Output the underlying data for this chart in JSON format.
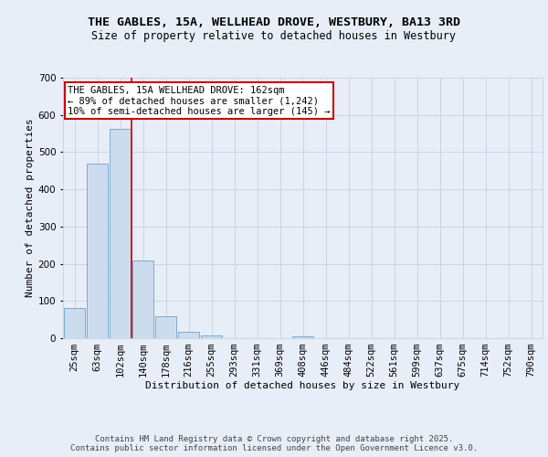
{
  "title1": "THE GABLES, 15A, WELLHEAD DROVE, WESTBURY, BA13 3RD",
  "title2": "Size of property relative to detached houses in Westbury",
  "xlabel": "Distribution of detached houses by size in Westbury",
  "ylabel": "Number of detached properties",
  "categories": [
    "25sqm",
    "63sqm",
    "102sqm",
    "140sqm",
    "178sqm",
    "216sqm",
    "255sqm",
    "293sqm",
    "331sqm",
    "369sqm",
    "408sqm",
    "446sqm",
    "484sqm",
    "522sqm",
    "561sqm",
    "599sqm",
    "637sqm",
    "675sqm",
    "714sqm",
    "752sqm",
    "790sqm"
  ],
  "values": [
    80,
    468,
    563,
    210,
    58,
    16,
    8,
    0,
    0,
    0,
    6,
    0,
    0,
    0,
    0,
    0,
    0,
    0,
    0,
    0,
    0
  ],
  "bar_color": "#ccdcee",
  "bar_edge_color": "#7aaccc",
  "grid_color": "#c8d4e4",
  "background_color": "#e8eef8",
  "vline_x": 2.5,
  "vline_color": "#cc0000",
  "annotation_text": "THE GABLES, 15A WELLHEAD DROVE: 162sqm\n← 89% of detached houses are smaller (1,242)\n10% of semi-detached houses are larger (145) →",
  "annotation_box_facecolor": "#ffffff",
  "annotation_box_edgecolor": "#cc0000",
  "ylim": [
    0,
    700
  ],
  "yticks": [
    0,
    100,
    200,
    300,
    400,
    500,
    600,
    700
  ],
  "footer_text": "Contains HM Land Registry data © Crown copyright and database right 2025.\nContains public sector information licensed under the Open Government Licence v3.0.",
  "title1_fontsize": 9.5,
  "title2_fontsize": 8.5,
  "axis_label_fontsize": 8,
  "tick_fontsize": 7.5,
  "annotation_fontsize": 7.5,
  "footer_fontsize": 6.5
}
